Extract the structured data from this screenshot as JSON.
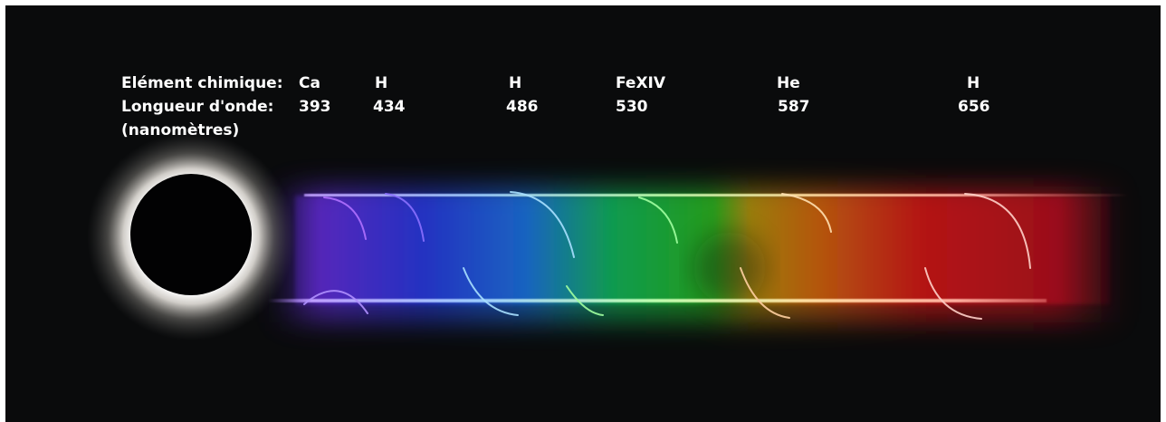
{
  "caption": {
    "element_label": "Elément chimique:",
    "wavelength_label": "Longueur d'onde:",
    "unit_label": "(nanomètres)"
  },
  "lines": [
    {
      "element": "Ca",
      "wavelength": "393",
      "color": "#7a3cff"
    },
    {
      "element": "H",
      "wavelength": "434",
      "color": "#5a3cff"
    },
    {
      "element": "H",
      "wavelength": "486",
      "color": "#38c8ff"
    },
    {
      "element": "FeXIV",
      "wavelength": "530",
      "color": "#33ff55"
    },
    {
      "element": "He",
      "wavelength": "587",
      "color": "#ffb030"
    },
    {
      "element": "H",
      "wavelength": "656",
      "color": "#ff2a2a"
    }
  ],
  "colors": {
    "background": "#0a0b0c",
    "text": "#ffffff"
  }
}
